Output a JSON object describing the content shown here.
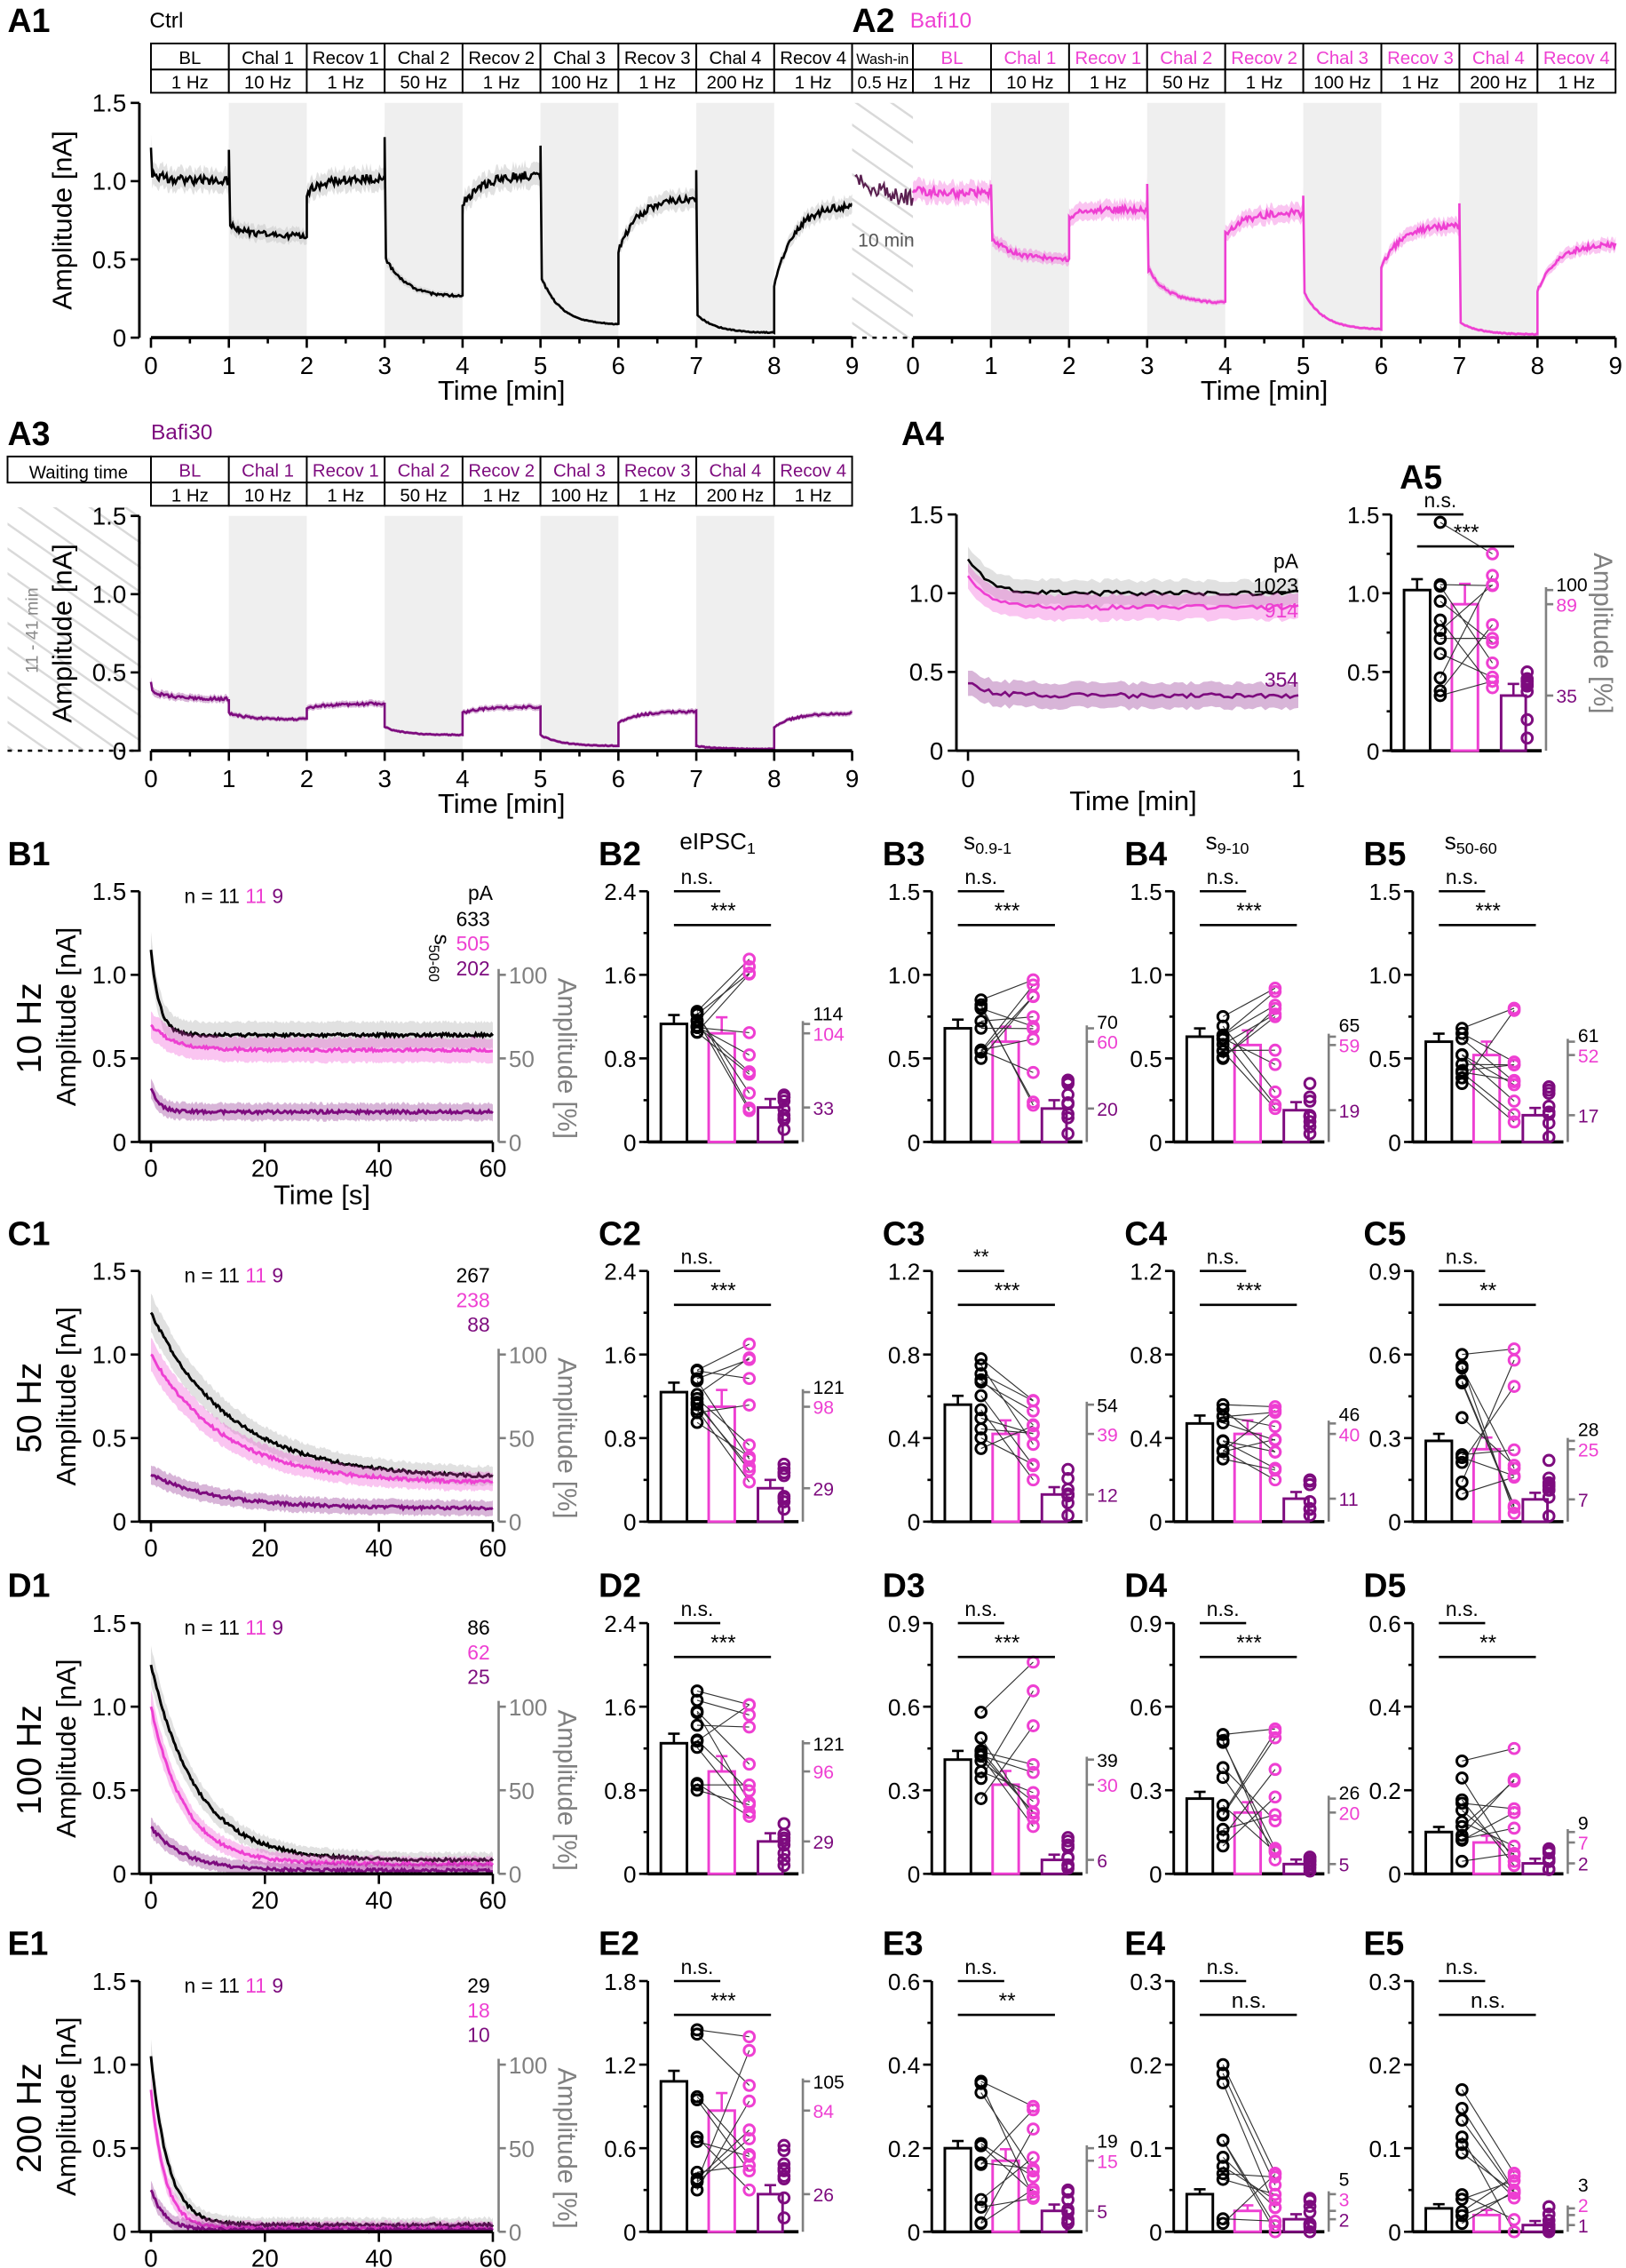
{
  "colors": {
    "ctrl": "#000000",
    "bafi10": "#ee3fd2",
    "bafi30": "#7d0b7e",
    "shade": "#efefef",
    "band_ctrl": "#c8c8c8",
    "right_axis": "#808080"
  },
  "chart_data": [
    {
      "id": "A1",
      "type": "line",
      "condition": "Ctrl",
      "color": "#000000",
      "xlabel": "Time [min]",
      "ylabel": "Amplitude [nA]",
      "xlim": [
        0,
        9
      ],
      "ylim": [
        0,
        1.5
      ],
      "xticks": [
        "0",
        "1",
        "2",
        "3",
        "4",
        "5",
        "6",
        "7",
        "8",
        "9"
      ],
      "yticks": [
        "0",
        "0.5",
        "1.0",
        "1.5"
      ],
      "phases": [
        "BL",
        "Chal 1",
        "Recov 1",
        "Chal 2",
        "Recov 2",
        "Chal 3",
        "Recov 3",
        "Chal 4",
        "Recov 4"
      ],
      "freqs": [
        "1 Hz",
        "10 Hz",
        "1 Hz",
        "50 Hz",
        "1 Hz",
        "100 Hz",
        "1 Hz",
        "200 Hz",
        "1 Hz"
      ],
      "segments": [
        [
          1.05,
          1.0
        ],
        [
          0.72,
          0.65
        ],
        [
          0.93,
          1.02
        ],
        [
          0.52,
          0.26
        ],
        [
          0.85,
          1.04
        ],
        [
          0.4,
          0.08
        ],
        [
          0.55,
          0.9
        ],
        [
          0.15,
          0.03
        ],
        [
          0.33,
          0.85
        ]
      ],
      "spikes": [
        1.25,
        1.2,
        null,
        1.25,
        null,
        1.22,
        null,
        1.05,
        null
      ]
    },
    {
      "id": "A2",
      "type": "line",
      "condition": "Bafi10",
      "color": "#ee3fd2",
      "xlabel": "Time [min]",
      "xlim": [
        0,
        9
      ],
      "ylim": [
        0,
        1.5
      ],
      "xticks": [
        "0",
        "1",
        "2",
        "3",
        "4",
        "5",
        "6",
        "7",
        "8",
        "9"
      ],
      "pre_phase": "Wash-in",
      "pre_freq": "0.5 Hz",
      "pre_duration": "10 min",
      "phases": [
        "BL",
        "Chal 1",
        "Recov 1",
        "Chal 2",
        "Recov 2",
        "Chal 3",
        "Recov 3",
        "Chal 4",
        "Recov 4"
      ],
      "freqs": [
        "1 Hz",
        "10 Hz",
        "1 Hz",
        "50 Hz",
        "1 Hz",
        "100 Hz",
        "1 Hz",
        "200 Hz",
        "1 Hz"
      ],
      "segments": [
        [
          0.95,
          0.92
        ],
        [
          0.65,
          0.5
        ],
        [
          0.78,
          0.82
        ],
        [
          0.45,
          0.22
        ],
        [
          0.66,
          0.8
        ],
        [
          0.3,
          0.05
        ],
        [
          0.45,
          0.72
        ],
        [
          0.1,
          0.02
        ],
        [
          0.3,
          0.6
        ]
      ],
      "spikes": [
        null,
        1.0,
        null,
        1.0,
        null,
        0.9,
        null,
        0.85,
        null
      ]
    },
    {
      "id": "A3",
      "type": "line",
      "condition": "Bafi30",
      "color": "#7d0b7e",
      "xlabel": "Time [min]",
      "ylabel": "Amplitude [nA]",
      "xlim": [
        0,
        9
      ],
      "ylim": [
        0,
        1.5
      ],
      "xticks": [
        "0",
        "1",
        "2",
        "3",
        "4",
        "5",
        "6",
        "7",
        "8",
        "9"
      ],
      "yticks": [
        "0",
        "0.5",
        "1.0",
        "1.5"
      ],
      "pre_phase": "Waiting time",
      "pre_duration": "11 - 41 min",
      "phases": [
        "BL",
        "Chal 1",
        "Recov 1",
        "Chal 2",
        "Recov 2",
        "Chal 3",
        "Recov 3",
        "Chal 4",
        "Recov 4"
      ],
      "freqs": [
        "1 Hz",
        "10 Hz",
        "1 Hz",
        "50 Hz",
        "1 Hz",
        "100 Hz",
        "1 Hz",
        "200 Hz",
        "1 Hz"
      ],
      "segments": [
        [
          0.38,
          0.33
        ],
        [
          0.24,
          0.2
        ],
        [
          0.27,
          0.3
        ],
        [
          0.15,
          0.1
        ],
        [
          0.24,
          0.28
        ],
        [
          0.1,
          0.03
        ],
        [
          0.18,
          0.25
        ],
        [
          0.03,
          0.01
        ],
        [
          0.15,
          0.24
        ]
      ],
      "spikes": [
        0.45,
        null,
        null,
        null,
        null,
        null,
        null,
        null,
        null
      ]
    },
    {
      "id": "A4",
      "type": "line",
      "xlabel": "Time [min]",
      "xlim": [
        0,
        1
      ],
      "ylim": [
        0,
        1.5
      ],
      "xticks": [
        "0",
        "1"
      ],
      "yticks": [
        "0",
        "0.5",
        "1.0",
        "1.5"
      ],
      "unit": "pA",
      "series": [
        {
          "name": "Ctrl",
          "start": 1.22,
          "plateau": 1.0,
          "label": "1023"
        },
        {
          "name": "Bafi10",
          "start": 1.1,
          "plateau": 0.91,
          "label": "914"
        },
        {
          "name": "Bafi30",
          "start": 0.43,
          "plateau": 0.35,
          "label": "354"
        }
      ]
    },
    {
      "id": "A5",
      "type": "bar",
      "ylim": [
        0,
        1.5
      ],
      "yticks": [
        "0",
        "0.5",
        "1.0",
        "1.5"
      ],
      "right_axis_label": "Amplitude [%]",
      "means": [
        1.02,
        0.93,
        0.35
      ],
      "range": [
        [
          0.35,
          1.45
        ],
        [
          0.4,
          1.25
        ],
        [
          0.08,
          0.5
        ]
      ],
      "pct": [
        "100",
        "89",
        "35"
      ],
      "sig": [
        "n.s.",
        "***"
      ]
    },
    {
      "id": "B1",
      "type": "line",
      "row_label": "10 Hz",
      "xlabel": "Time [s]",
      "ylabel": "Amplitude [nA]",
      "right_label": "Amplitude [%]",
      "xticks": [
        "0",
        "20",
        "40",
        "60"
      ],
      "yticks": [
        "0",
        "0.5",
        "1.0",
        "1.5"
      ],
      "rticks": [
        "0",
        "50",
        "100"
      ],
      "n_label": "n = 11",
      "n2": "11",
      "n3": "9",
      "unit": "pA",
      "s_label": "s",
      "s_sub": "50-60",
      "values": [
        "633",
        "505",
        "202"
      ],
      "series": [
        {
          "start": 1.15,
          "plateau": 0.64,
          "tau": 1.5
        },
        {
          "start": 0.7,
          "plateau": 0.55,
          "tau": 4
        },
        {
          "start": 0.32,
          "plateau": 0.18,
          "tau": 1.5
        }
      ]
    },
    {
      "id": "B2",
      "type": "bar",
      "title": "eIPSC",
      "sub": "1",
      "ylim": [
        0,
        2.4
      ],
      "yticks": [
        "0",
        "0.8",
        "1.6",
        "2.4"
      ],
      "means": [
        1.13,
        1.04,
        0.33
      ],
      "range": [
        [
          1.05,
          1.25
        ],
        [
          0.3,
          1.75
        ],
        [
          0.12,
          0.45
        ]
      ],
      "pct": [
        "114",
        "104",
        "33"
      ],
      "sig": [
        "n.s.",
        "***"
      ]
    },
    {
      "id": "B3",
      "type": "bar",
      "title": "s",
      "sub": "0.9-1",
      "ylim": [
        0,
        1.5
      ],
      "yticks": [
        "0",
        "0.5",
        "1.0",
        "1.5"
      ],
      "means": [
        0.68,
        0.6,
        0.2
      ],
      "range": [
        [
          0.5,
          0.85
        ],
        [
          0.22,
          0.97
        ],
        [
          0.05,
          0.37
        ]
      ],
      "pct": [
        "70",
        "60",
        "20"
      ],
      "sig": [
        "n.s.",
        "***"
      ]
    },
    {
      "id": "B4",
      "type": "bar",
      "title": "s",
      "sub": "9-10",
      "ylim": [
        0,
        1.5
      ],
      "yticks": [
        "0",
        "0.5",
        "1.0",
        "1.5"
      ],
      "means": [
        0.63,
        0.58,
        0.19
      ],
      "range": [
        [
          0.5,
          0.75
        ],
        [
          0.2,
          0.92
        ],
        [
          0.05,
          0.35
        ]
      ],
      "pct": [
        "65",
        "59",
        "19"
      ],
      "sig": [
        "n.s.",
        "***"
      ]
    },
    {
      "id": "B5",
      "type": "bar",
      "title": "s",
      "sub": "50-60",
      "ylim": [
        0,
        1.5
      ],
      "yticks": [
        "0",
        "0.5",
        "1.0",
        "1.5"
      ],
      "means": [
        0.6,
        0.52,
        0.16
      ],
      "range": [
        [
          0.35,
          0.68
        ],
        [
          0.12,
          0.8
        ],
        [
          0.03,
          0.33
        ]
      ],
      "pct": [
        "61",
        "52",
        "17"
      ],
      "sig": [
        "n.s.",
        "***"
      ]
    },
    {
      "id": "C1",
      "type": "line",
      "row_label": "50 Hz",
      "ylabel": "Amplitude [nA]",
      "right_label": "Amplitude [%]",
      "xticks": [
        "0",
        "20",
        "40",
        "60"
      ],
      "yticks": [
        "0",
        "0.5",
        "1.0",
        "1.5"
      ],
      "rticks": [
        "0",
        "50",
        "100"
      ],
      "n_label": "n = 11",
      "n2": "11",
      "n3": "9",
      "values": [
        "267",
        "238",
        "88"
      ],
      "series": [
        {
          "start": 1.25,
          "plateau": 0.26,
          "tau": 14
        },
        {
          "start": 1.0,
          "plateau": 0.23,
          "tau": 13
        },
        {
          "start": 0.28,
          "plateau": 0.08,
          "tau": 12
        }
      ]
    },
    {
      "id": "C2",
      "type": "bar",
      "ylim": [
        0,
        2.4
      ],
      "yticks": [
        "0",
        "0.8",
        "1.6",
        "2.4"
      ],
      "means": [
        1.24,
        1.1,
        0.32
      ],
      "range": [
        [
          0.95,
          1.45
        ],
        [
          0.38,
          1.7
        ],
        [
          0.12,
          0.55
        ]
      ],
      "pct": [
        "121",
        "98",
        "29"
      ],
      "sig": [
        "n.s.",
        "***"
      ]
    },
    {
      "id": "C3",
      "type": "bar",
      "ylim": [
        0,
        1.2
      ],
      "yticks": [
        "0",
        "0.4",
        "0.8",
        "1.2"
      ],
      "means": [
        0.56,
        0.42,
        0.13
      ],
      "range": [
        [
          0.35,
          0.78
        ],
        [
          0.2,
          0.58
        ],
        [
          0.03,
          0.25
        ]
      ],
      "pct": [
        "54",
        "39",
        "12"
      ],
      "sig": [
        "**",
        "***"
      ]
    },
    {
      "id": "C4",
      "type": "bar",
      "ylim": [
        0,
        1.2
      ],
      "yticks": [
        "0",
        "0.4",
        "0.8",
        "1.2"
      ],
      "means": [
        0.47,
        0.42,
        0.11
      ],
      "range": [
        [
          0.3,
          0.56
        ],
        [
          0.2,
          0.55
        ],
        [
          0.03,
          0.2
        ]
      ],
      "pct": [
        "46",
        "40",
        "11"
      ],
      "sig": [
        "n.s.",
        "***"
      ]
    },
    {
      "id": "C5",
      "type": "bar",
      "ylim": [
        0,
        0.9
      ],
      "yticks": [
        "0",
        "0.3",
        "0.6",
        "0.9"
      ],
      "means": [
        0.29,
        0.26,
        0.08
      ],
      "range": [
        [
          0.1,
          0.6
        ],
        [
          0.03,
          0.62
        ],
        [
          0.02,
          0.22
        ]
      ],
      "pct": [
        "28",
        "25",
        "7"
      ],
      "sig": [
        "n.s.",
        "**"
      ]
    },
    {
      "id": "D1",
      "type": "line",
      "row_label": "100 Hz",
      "ylabel": "Amplitude [nA]",
      "right_label": "Amplitude [%]",
      "xticks": [
        "0",
        "20",
        "40",
        "60"
      ],
      "yticks": [
        "0",
        "0.5",
        "1.0",
        "1.5"
      ],
      "rticks": [
        "0",
        "50",
        "100"
      ],
      "n_label": "n = 11",
      "n2": "11",
      "n3": "9",
      "values": [
        "86",
        "62",
        "25"
      ],
      "series": [
        {
          "start": 1.25,
          "plateau": 0.08,
          "tau": 8
        },
        {
          "start": 1.0,
          "plateau": 0.06,
          "tau": 6
        },
        {
          "start": 0.28,
          "plateau": 0.02,
          "tau": 6
        }
      ]
    },
    {
      "id": "D2",
      "type": "bar",
      "ylim": [
        0,
        2.4
      ],
      "yticks": [
        "0",
        "0.8",
        "1.6",
        "2.4"
      ],
      "means": [
        1.25,
        0.98,
        0.31
      ],
      "range": [
        [
          0.8,
          1.75
        ],
        [
          0.55,
          1.62
        ],
        [
          0.08,
          0.48
        ]
      ],
      "pct": [
        "121",
        "96",
        "29"
      ],
      "sig": [
        "n.s.",
        "***"
      ]
    },
    {
      "id": "D3",
      "type": "bar",
      "ylim": [
        0,
        0.9
      ],
      "yticks": [
        "0",
        "0.3",
        "0.6",
        "0.9"
      ],
      "means": [
        0.41,
        0.32,
        0.05
      ],
      "range": [
        [
          0.27,
          0.58
        ],
        [
          0.17,
          0.76
        ],
        [
          0.02,
          0.13
        ]
      ],
      "pct": [
        "39",
        "30",
        "6"
      ],
      "sig": [
        "n.s.",
        "***"
      ]
    },
    {
      "id": "D4",
      "type": "bar",
      "ylim": [
        0,
        0.9
      ],
      "yticks": [
        "0",
        "0.3",
        "0.6",
        "0.9"
      ],
      "means": [
        0.27,
        0.22,
        0.035
      ],
      "range": [
        [
          0.1,
          0.5
        ],
        [
          0.05,
          0.52
        ],
        [
          0.01,
          0.06
        ]
      ],
      "pct": [
        "26",
        "20",
        "5"
      ],
      "sig": [
        "n.s.",
        "***"
      ]
    },
    {
      "id": "D5",
      "type": "bar",
      "ylim": [
        0,
        0.6
      ],
      "yticks": [
        "0",
        "0.2",
        "0.4",
        "0.6"
      ],
      "means": [
        0.1,
        0.075,
        0.025
      ],
      "range": [
        [
          0.03,
          0.27
        ],
        [
          0.02,
          0.3
        ],
        [
          0.01,
          0.06
        ]
      ],
      "pct": [
        "9",
        "7",
        "2"
      ],
      "sig": [
        "n.s.",
        "**"
      ]
    },
    {
      "id": "E1",
      "type": "line",
      "row_label": "200 Hz",
      "ylabel": "Amplitude [nA]",
      "right_label": "Amplitude [%]",
      "xticks": [
        "0",
        "20",
        "40",
        "60"
      ],
      "yticks": [
        "0",
        "0.5",
        "1.0",
        "1.5"
      ],
      "rticks": [
        "0",
        "50",
        "100"
      ],
      "n_label": "n = 11",
      "n2": "11",
      "n3": "9",
      "values": [
        "29",
        "18",
        "10"
      ],
      "series": [
        {
          "start": 1.05,
          "plateau": 0.04,
          "tau": 3
        },
        {
          "start": 0.85,
          "plateau": 0.02,
          "tau": 2.5
        },
        {
          "start": 0.25,
          "plateau": 0.01,
          "tau": 2.5
        }
      ]
    },
    {
      "id": "E2",
      "type": "bar",
      "ylim": [
        0,
        1.8
      ],
      "yticks": [
        "0",
        "0.6",
        "1.2",
        "1.8"
      ],
      "means": [
        1.08,
        0.87,
        0.27
      ],
      "range": [
        [
          0.3,
          1.45
        ],
        [
          0.3,
          1.4
        ],
        [
          0.1,
          0.62
        ]
      ],
      "pct": [
        "105",
        "84",
        "26"
      ],
      "sig": [
        "n.s.",
        "***"
      ]
    },
    {
      "id": "E3",
      "type": "bar",
      "ylim": [
        0,
        0.6
      ],
      "yticks": [
        "0",
        "0.2",
        "0.4",
        "0.6"
      ],
      "means": [
        0.2,
        0.17,
        0.05
      ],
      "range": [
        [
          0.02,
          0.36
        ],
        [
          0.08,
          0.3
        ],
        [
          0.02,
          0.1
        ]
      ],
      "pct": [
        "19",
        "15",
        "5"
      ],
      "sig": [
        "n.s.",
        "**"
      ]
    },
    {
      "id": "E4",
      "type": "bar",
      "ylim": [
        0,
        0.3
      ],
      "yticks": [
        "0",
        "0.1",
        "0.2",
        "0.3"
      ],
      "means": [
        0.045,
        0.025,
        0.015
      ],
      "range": [
        [
          0.01,
          0.2
        ],
        [
          0.0,
          0.07
        ],
        [
          0.0,
          0.04
        ]
      ],
      "pct": [
        "5",
        "3",
        "2"
      ],
      "sig": [
        "n.s.",
        "n.s."
      ]
    },
    {
      "id": "E5",
      "type": "bar",
      "ylim": [
        0,
        0.3
      ],
      "yticks": [
        "0",
        "0.1",
        "0.2",
        "0.3"
      ],
      "means": [
        0.028,
        0.02,
        0.008
      ],
      "range": [
        [
          0.01,
          0.17
        ],
        [
          0.0,
          0.07
        ],
        [
          0.0,
          0.03
        ]
      ],
      "pct": [
        "3",
        "2",
        "1"
      ],
      "sig": [
        "n.s.",
        "n.s."
      ]
    }
  ]
}
